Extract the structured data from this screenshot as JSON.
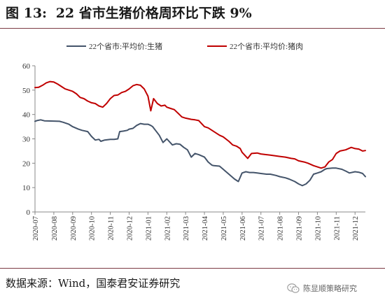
{
  "header": {
    "figure_label": "图 13:",
    "title": "22 省市生猪价格周环比下跌 9%"
  },
  "footer": {
    "source": "数据来源：Wind，国泰君安证券研究",
    "watermark_text": "陈显顺策略研究",
    "watermark_icon": "wechat-icon"
  },
  "colors": {
    "series_hog": "#44546a",
    "series_pork": "#c00000",
    "axis": "#888888",
    "text": "#333333",
    "rule": "#7b3a43"
  },
  "chart_data": {
    "type": "line",
    "ylim": [
      0,
      60
    ],
    "yticks": [
      0,
      10,
      20,
      30,
      40,
      50,
      60
    ],
    "x_tick_labels": [
      "2020-07",
      "2020-08",
      "2020-09",
      "2020-10",
      "2020-11",
      "2020-12",
      "2021-01",
      "2021-02",
      "2021-03",
      "2021-04",
      "2021-05",
      "2021-06",
      "2021-07",
      "2021-08",
      "2021-09",
      "2021-10",
      "2021-11",
      "2021-12"
    ],
    "x_range": [
      0,
      17.55
    ],
    "grid": false,
    "legend_position": "top",
    "series": [
      {
        "name": "22个省市:平均价:生猪",
        "color": "#44546a",
        "x": [
          0,
          0.1,
          0.3,
          0.5,
          1.0,
          1.3,
          1.5,
          1.8,
          2.0,
          2.3,
          2.5,
          2.8,
          3.0,
          3.2,
          3.4,
          3.5,
          3.7,
          4.0,
          4.2,
          4.4,
          4.5,
          4.7,
          4.9,
          5.0,
          5.2,
          5.4,
          5.6,
          5.8,
          6.0,
          6.15,
          6.25,
          6.4,
          6.6,
          6.8,
          7.0,
          7.3,
          7.5,
          7.7,
          7.9,
          8.1,
          8.3,
          8.5,
          8.7,
          9.0,
          9.2,
          9.4,
          9.5,
          9.8,
          10.0,
          10.3,
          10.6,
          10.8,
          11.0,
          11.2,
          11.4,
          11.6,
          11.8,
          12.0,
          12.3,
          12.5,
          12.8,
          13.0,
          13.3,
          13.5,
          13.8,
          14.0,
          14.2,
          14.4,
          14.6,
          14.8,
          15.0,
          15.2,
          15.4,
          15.5,
          15.8,
          16.0,
          16.3,
          16.5,
          16.7,
          17.0,
          17.2,
          17.4,
          17.55
        ],
        "y": [
          37.2,
          37.5,
          37.8,
          37.4,
          37.3,
          37.2,
          36.8,
          36.0,
          35.0,
          34.0,
          33.5,
          33.0,
          31.0,
          29.5,
          29.8,
          29.0,
          29.5,
          29.8,
          29.8,
          30.0,
          33.0,
          33.2,
          33.5,
          34.0,
          34.3,
          35.5,
          36.3,
          36.0,
          36.0,
          35.5,
          35.0,
          33.5,
          31.5,
          28.5,
          30.0,
          27.5,
          28.0,
          27.8,
          26.5,
          25.5,
          22.5,
          24.0,
          23.5,
          22.5,
          20.5,
          19.2,
          19.0,
          18.8,
          17.5,
          15.5,
          13.5,
          12.5,
          16.0,
          16.5,
          16.2,
          16.2,
          16.0,
          15.8,
          15.5,
          15.5,
          15.0,
          14.5,
          14.0,
          13.5,
          12.5,
          11.5,
          10.8,
          11.5,
          13.0,
          15.5,
          16.0,
          16.5,
          17.5,
          17.8,
          18.0,
          18.0,
          17.5,
          16.8,
          16.0,
          16.5,
          16.3,
          15.8,
          14.5
        ]
      },
      {
        "name": "22个省市:平均价:猪肉",
        "color": "#c00000",
        "x": [
          0,
          0.2,
          0.4,
          0.6,
          0.8,
          1.0,
          1.2,
          1.4,
          1.6,
          1.8,
          2.0,
          2.2,
          2.4,
          2.6,
          2.8,
          3.0,
          3.2,
          3.4,
          3.6,
          3.8,
          4.0,
          4.2,
          4.4,
          4.6,
          4.8,
          5.0,
          5.2,
          5.4,
          5.6,
          5.8,
          6.0,
          6.15,
          6.3,
          6.5,
          6.7,
          6.9,
          7.0,
          7.2,
          7.4,
          7.6,
          7.8,
          8.0,
          8.3,
          8.5,
          8.7,
          9.0,
          9.2,
          9.4,
          9.6,
          9.8,
          10.0,
          10.3,
          10.5,
          10.7,
          10.9,
          11.0,
          11.3,
          11.5,
          11.8,
          12.0,
          12.3,
          12.5,
          12.8,
          13.0,
          13.3,
          13.6,
          13.8,
          14.0,
          14.3,
          14.5,
          14.8,
          15.0,
          15.2,
          15.4,
          15.6,
          15.8,
          16.0,
          16.2,
          16.5,
          16.8,
          17.0,
          17.2,
          17.4,
          17.55
        ],
        "y": [
          51.0,
          51.2,
          52.0,
          53.0,
          53.5,
          53.3,
          52.5,
          51.5,
          50.5,
          50.0,
          49.5,
          48.5,
          47.0,
          46.5,
          45.5,
          44.8,
          44.5,
          43.5,
          43.0,
          44.5,
          46.5,
          47.8,
          48.0,
          49.0,
          49.5,
          50.5,
          51.8,
          52.3,
          52.0,
          50.5,
          47.5,
          41.5,
          46.5,
          44.5,
          43.5,
          43.8,
          43.0,
          42.5,
          42.0,
          40.5,
          39.0,
          38.5,
          38.0,
          37.8,
          37.5,
          35.0,
          34.5,
          33.5,
          32.5,
          31.5,
          30.8,
          29.0,
          27.5,
          27.0,
          26.0,
          24.5,
          22.0,
          24.0,
          24.2,
          23.8,
          23.5,
          23.3,
          23.0,
          22.8,
          22.5,
          22.0,
          21.8,
          21.0,
          20.5,
          20.0,
          19.0,
          18.5,
          18.0,
          18.5,
          20.5,
          21.5,
          24.0,
          25.0,
          25.5,
          26.5,
          26.0,
          25.8,
          25.0,
          25.2
        ]
      }
    ]
  }
}
